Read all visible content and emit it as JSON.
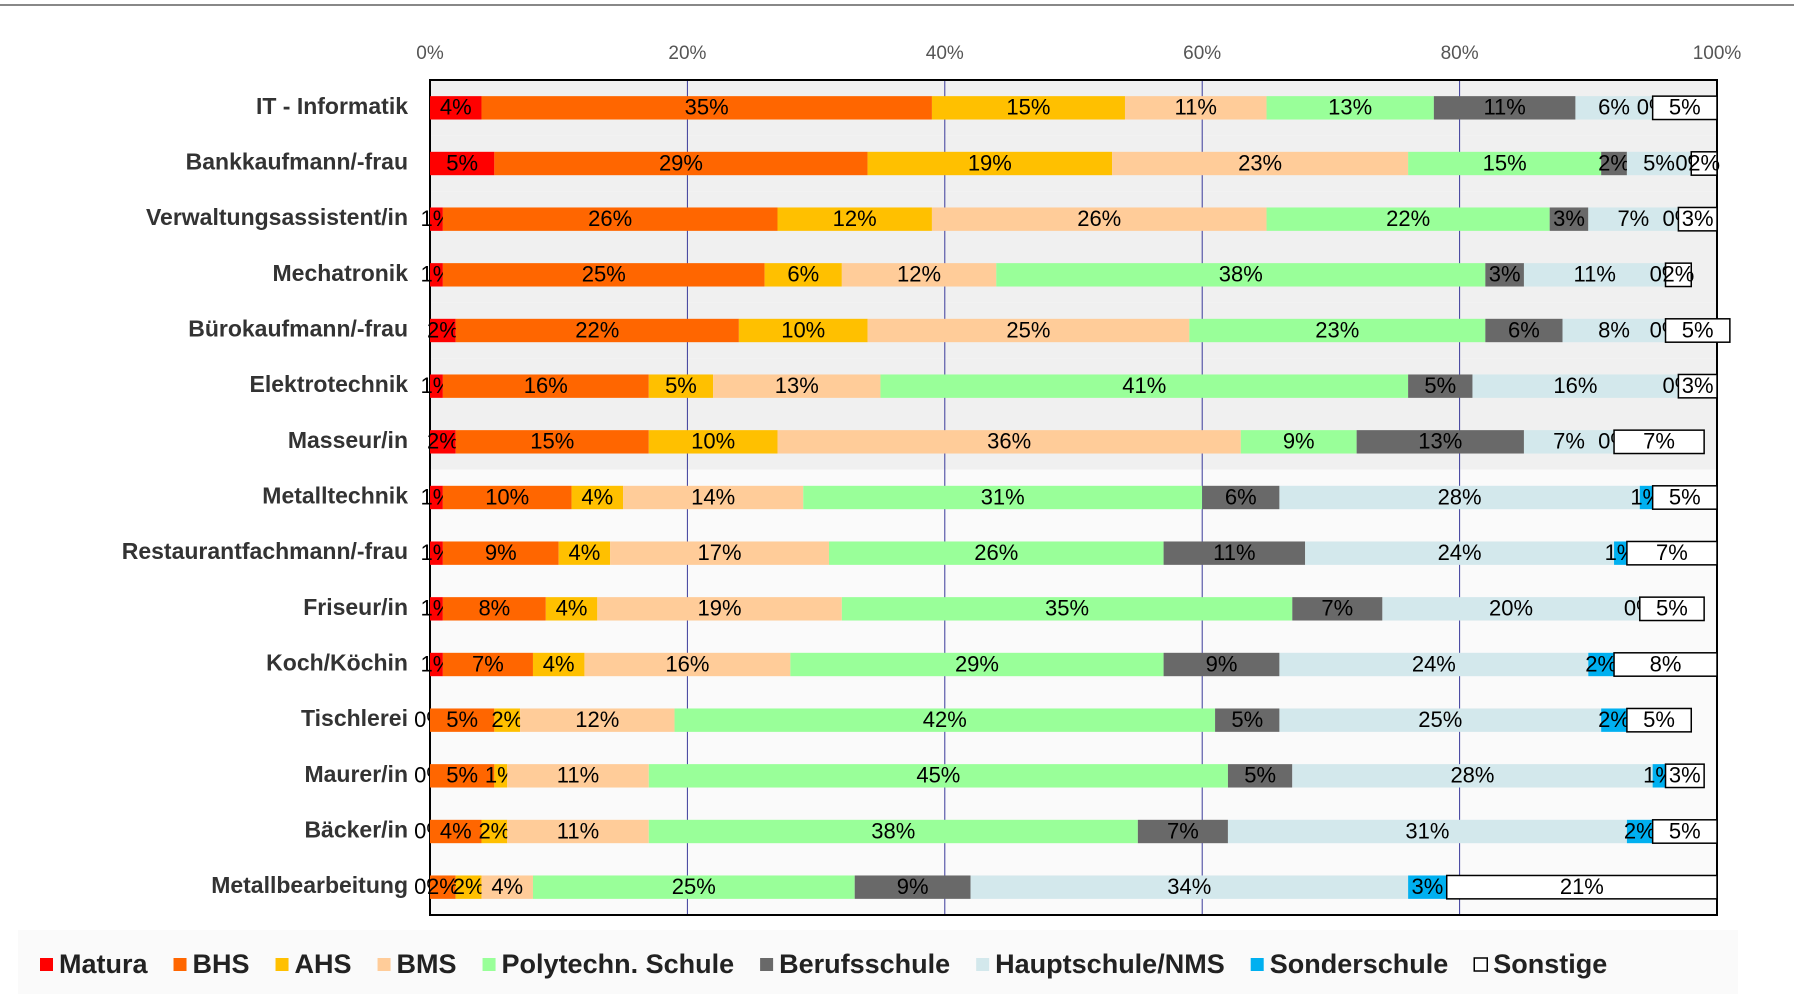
{
  "chart_data": {
    "type": "stacked_bar_horizontal",
    "categories": [
      "IT - Informatik",
      "Bankkaufmann/-frau",
      "Verwaltungsassistent/in",
      "Mechatronik",
      "Bürokaufmann/-frau",
      "Elektrotechnik",
      "Masseur/in",
      "Metalltechnik",
      "Restaurantfachmann/-frau",
      "Friseur/in",
      "Koch/Köchin",
      "Tischlerei",
      "Maurer/in",
      "Bäcker/in",
      "Metallbearbeitung"
    ],
    "series": [
      {
        "name": "Matura",
        "color": "#ff0000",
        "values": [
          4,
          5,
          1,
          1,
          2,
          1,
          2,
          1,
          1,
          1,
          1,
          0,
          0,
          0,
          0
        ],
        "value_labels": [
          "4%",
          "5%",
          "1%",
          "1%",
          "2%",
          "1%",
          "2%",
          "1%",
          "1%",
          "1%",
          "1%",
          "0%",
          "0%",
          "0%",
          "0%"
        ]
      },
      {
        "name": "BHS",
        "color": "#ff6600",
        "values": [
          35,
          29,
          26,
          25,
          22,
          16,
          15,
          10,
          9,
          8,
          7,
          5,
          5,
          4,
          2
        ],
        "value_labels": [
          "35%",
          "29%",
          "26%",
          "25%",
          "22%",
          "16%",
          "15%",
          "10%",
          "9%",
          "8%",
          "7%",
          "5%",
          "5%",
          "4%",
          "2%"
        ]
      },
      {
        "name": "AHS",
        "color": "#ffc000",
        "values": [
          15,
          19,
          12,
          6,
          10,
          5,
          10,
          4,
          4,
          4,
          4,
          2,
          1,
          2,
          2
        ],
        "value_labels": [
          "15%",
          "19%",
          "12%",
          "6%",
          "10%",
          "5%",
          "10%",
          "4%",
          "4%",
          "4%",
          "4%",
          "2%",
          "1%",
          "2%",
          "2%"
        ]
      },
      {
        "name": "BMS",
        "color": "#ffcc99",
        "values": [
          11,
          23,
          26,
          12,
          25,
          13,
          36,
          14,
          17,
          19,
          16,
          12,
          11,
          11,
          4
        ],
        "value_labels": [
          "11%",
          "23%",
          "26%",
          "12%",
          "25%",
          "13%",
          "36%",
          "14%",
          "17%",
          "19%",
          "16%",
          "12%",
          "11%",
          "11%",
          "4%"
        ]
      },
      {
        "name": "Polytechn. Schule",
        "color": "#99ff99",
        "values": [
          13,
          15,
          22,
          38,
          23,
          41,
          9,
          31,
          26,
          35,
          29,
          42,
          45,
          38,
          25
        ],
        "value_labels": [
          "13%",
          "15%",
          "22%",
          "38%",
          "23%",
          "41%",
          "9%",
          "31%",
          "26%",
          "35%",
          "29%",
          "42%",
          "45%",
          "38%",
          "25%"
        ]
      },
      {
        "name": "Berufsschule",
        "color": "#696969",
        "values": [
          11,
          2,
          3,
          3,
          6,
          5,
          13,
          6,
          11,
          7,
          9,
          5,
          5,
          7,
          9
        ],
        "value_labels": [
          "11%",
          "2%",
          "3%",
          "3%",
          "6%",
          "5%",
          "13%",
          "6%",
          "11%",
          "7%",
          "9%",
          "5%",
          "5%",
          "7%",
          "9%"
        ]
      },
      {
        "name": "Hauptschule/NMS",
        "color": "#d3e8ec",
        "values": [
          6,
          5,
          7,
          11,
          8,
          16,
          7,
          28,
          24,
          20,
          24,
          25,
          28,
          31,
          34
        ],
        "value_labels": [
          "6%",
          "5%",
          "7%",
          "11%",
          "8%",
          "16%",
          "7%",
          "28%",
          "24%",
          "20%",
          "24%",
          "25%",
          "28%",
          "31%",
          "34%"
        ]
      },
      {
        "name": "Sonderschule",
        "color": "#00b0f0",
        "values": [
          0,
          0,
          0,
          0,
          0,
          0,
          0,
          1,
          1,
          0,
          2,
          2,
          1,
          2,
          3
        ],
        "value_labels": [
          "0%",
          "0%",
          "0%",
          "0%",
          "0%",
          "0%",
          "0%",
          "1%",
          "1%",
          "0%",
          "2%",
          "2%",
          "1%",
          "2%",
          "3%"
        ]
      },
      {
        "name": "Sonstige",
        "color": "#ffffff",
        "values": [
          5,
          2,
          3,
          2,
          5,
          3,
          7,
          5,
          7,
          5,
          8,
          5,
          3,
          5,
          21
        ],
        "value_labels": [
          "5%",
          "2%",
          "3%",
          "2%",
          "5%",
          "3%",
          "7%",
          "5%",
          "7%",
          "5%",
          "8%",
          "5%",
          "3%",
          "5%",
          "21%"
        ]
      }
    ],
    "xlim": [
      0,
      100
    ],
    "xticks": [
      {
        "value": 0,
        "label": "0%"
      },
      {
        "value": 20,
        "label": "20%"
      },
      {
        "value": 40,
        "label": "40%"
      },
      {
        "value": 60,
        "label": "60%"
      },
      {
        "value": 80,
        "label": "80%"
      },
      {
        "value": 100,
        "label": "100%"
      }
    ],
    "grid": true,
    "legend": "bottom"
  }
}
